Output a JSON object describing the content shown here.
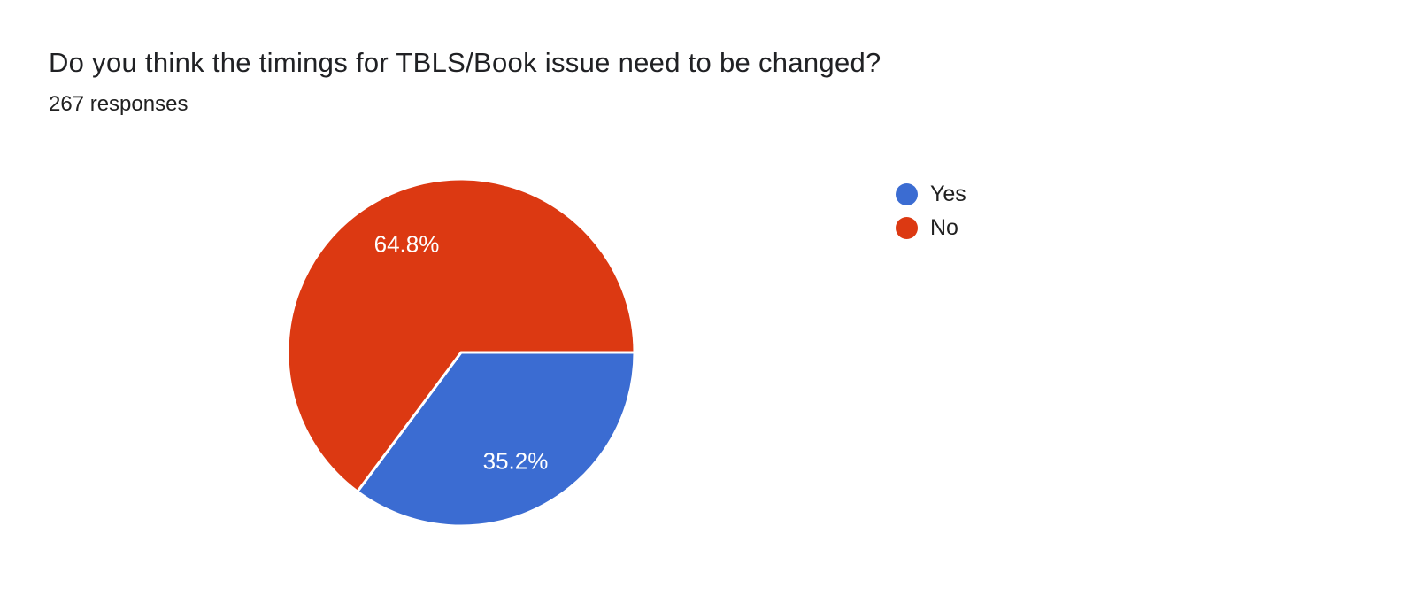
{
  "chart_data": {
    "type": "pie",
    "title": "Do you think the timings for TBLS/Book issue need to be changed?",
    "subtitle": "267 responses",
    "categories": [
      "Yes",
      "No"
    ],
    "values_percent": [
      35.2,
      64.8
    ],
    "slice_labels": [
      "35.2%",
      "64.8%"
    ],
    "colors": [
      "#3b6cd2",
      "#dc3912"
    ],
    "slice_label_color": "#ffffff",
    "slice_gap_stroke": "#ffffff",
    "legend_position": "right",
    "start_angle_deg": 0,
    "direction": "clockwise",
    "label_radius_ratio": 0.7
  },
  "header": {
    "title_color": "#202124"
  }
}
